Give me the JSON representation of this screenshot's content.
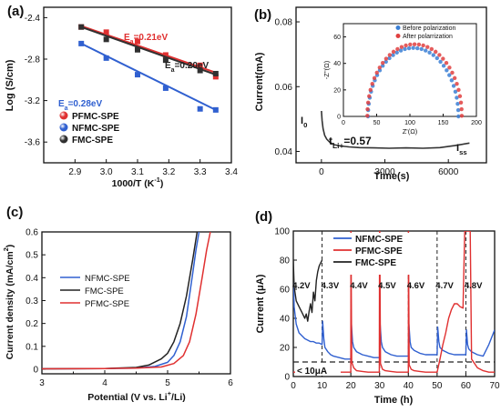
{
  "panels": [
    {
      "letter": "(a)",
      "chart_data": {
        "type": "scatter",
        "xlabel": "1000/T (K",
        "xlabel_sup": "-1",
        "xlabel_tail": ")",
        "ylabel": "Log (S/cm)",
        "xlim": [
          2.8,
          3.4
        ],
        "ylim": [
          -3.8,
          -2.3
        ],
        "xticks": [
          "2.9",
          "3.0",
          "3.1",
          "3.2",
          "3.3",
          "3.4"
        ],
        "xtick_values": [
          2.9,
          3.0,
          3.1,
          3.2,
          3.3,
          3.4
        ],
        "yticks": [
          "-2.4",
          "-2.8",
          "-3.2",
          "-3.6"
        ],
        "ytick_values": [
          -2.4,
          -2.8,
          -3.2,
          -3.6
        ],
        "series": [
          {
            "name": "PFMC-SPE",
            "color": "#e03030",
            "x": [
              2.92,
              3.0,
              3.1,
              3.19,
              3.3,
              3.35
            ],
            "y": [
              -2.49,
              -2.54,
              -2.63,
              -2.76,
              -2.86,
              -2.97
            ],
            "fit": [
              [
                2.92,
                -2.48
              ],
              [
                3.35,
                -2.93
              ]
            ]
          },
          {
            "name": "NFMC-SPE",
            "color": "#3060d0",
            "x": [
              2.92,
              3.0,
              3.1,
              3.19,
              3.3,
              3.35
            ],
            "y": [
              -2.65,
              -2.79,
              -2.95,
              -3.08,
              -3.28,
              -3.29
            ],
            "fit": [
              [
                2.92,
                -2.65
              ],
              [
                3.35,
                -3.29
              ]
            ]
          },
          {
            "name": "FMC-SPE",
            "color": "#303030",
            "x": [
              2.92,
              3.0,
              3.1,
              3.19,
              3.3,
              3.35
            ],
            "y": [
              -2.49,
              -2.61,
              -2.71,
              -2.81,
              -2.91,
              -2.94
            ],
            "fit": [
              [
                2.92,
                -2.49
              ],
              [
                3.35,
                -2.95
              ]
            ]
          }
        ],
        "annotations": [
          {
            "text": "E",
            "sub": "a",
            "tail": "=0.21eV",
            "color": "#e03030"
          },
          {
            "text": "E",
            "sub": "a",
            "tail": "=0.20eV",
            "color": "#222222"
          },
          {
            "text": "E",
            "sub": "a",
            "tail": "=0.28eV",
            "color": "#3060d0"
          }
        ],
        "legend": "bottom-left"
      }
    },
    {
      "letter": "(b)",
      "chart_data": {
        "type": "line",
        "xlabel": "Time(s)",
        "ylabel": "Current(mA)",
        "xlim": [
          -1200,
          7800
        ],
        "ylim": [
          0.0365,
          0.0845
        ],
        "xticks": [
          "0",
          "3000",
          "6000"
        ],
        "xtick_values": [
          0,
          3000,
          6000
        ],
        "yticks": [
          "0.04",
          "0.06",
          "0.08"
        ],
        "ytick_values": [
          0.04,
          0.06,
          0.08
        ],
        "series": [
          {
            "name": "",
            "color": "#333333",
            "x": [
              0,
              30,
              80,
              150,
              250,
              400,
              600,
              900,
              1300,
              1800,
              2500,
              3200,
              4000,
              4800,
              5600,
              6300,
              7000
            ],
            "y": [
              0.0525,
              0.0495,
              0.047,
              0.045,
              0.0438,
              0.0428,
              0.0421,
              0.0417,
              0.0414,
              0.0412,
              0.0411,
              0.041,
              0.0411,
              0.041,
              0.0412,
              0.0418,
              0.0426
            ]
          }
        ],
        "labels": {
          "I0": "I",
          "I0_sub": "0",
          "tLi": "t",
          "tLi_sub": "Li+",
          "tLi_tail": "=0.57",
          "Iss": "I",
          "Iss_sub": "ss"
        },
        "inset": {
          "type": "scatter",
          "xlabel": "Z'(Ω)",
          "ylabel": "-Z''(Ω)",
          "xlim": [
            0,
            200
          ],
          "ylim": [
            0,
            70
          ],
          "xticks": [
            "0",
            "50",
            "100",
            "150",
            "200"
          ],
          "xtick_values": [
            0,
            50,
            100,
            150,
            200
          ],
          "yticks": [
            "0",
            "20",
            "40",
            "60"
          ],
          "ytick_values": [
            0,
            20,
            40,
            60
          ],
          "series": [
            {
              "name": "Before polarization",
              "color": "#3a7fd5",
              "center": 105,
              "radius": 68
            },
            {
              "name": "After polarrization",
              "color": "#e04040",
              "center": 107,
              "radius": 71
            }
          ],
          "legend": "top-right"
        }
      }
    },
    {
      "letter": "(c)",
      "chart_data": {
        "type": "line",
        "xlabel": "Potential (V vs. Li",
        "xlabel_sup": "+",
        "xlabel_tail": "/Li)",
        "ylabel": "Current density (mA/cm",
        "ylabel_sup": "2",
        "ylabel_tail": ")",
        "xlim": [
          3,
          6
        ],
        "ylim": [
          -0.02,
          0.6
        ],
        "xticks": [
          "3",
          "4",
          "5",
          "6"
        ],
        "xtick_values": [
          3,
          4,
          5,
          6
        ],
        "xminor": [
          3.5,
          4.5,
          5.5
        ],
        "yticks": [
          "0",
          "0.1",
          "0.2",
          "0.3",
          "0.4",
          "0.5",
          "0.6"
        ],
        "ytick_values": [
          0,
          0.1,
          0.2,
          0.3,
          0.4,
          0.5,
          0.6
        ],
        "series": [
          {
            "name": "NFMC-SPE",
            "color": "#3060d0",
            "x": [
              3.0,
              4.0,
              4.5,
              4.8,
              5.0,
              5.1,
              5.2,
              5.3,
              5.4,
              5.45,
              5.5
            ],
            "y": [
              0.002,
              0.003,
              0.005,
              0.012,
              0.03,
              0.06,
              0.12,
              0.23,
              0.42,
              0.52,
              0.6
            ]
          },
          {
            "name": "FMC-SPE",
            "color": "#222222",
            "x": [
              3.0,
              4.0,
              4.5,
              4.7,
              4.9,
              5.0,
              5.1,
              5.2,
              5.3,
              5.4,
              5.47
            ],
            "y": [
              0.002,
              0.003,
              0.008,
              0.018,
              0.045,
              0.07,
              0.12,
              0.2,
              0.32,
              0.48,
              0.6
            ]
          },
          {
            "name": "PFMC-SPE",
            "color": "#e03030",
            "x": [
              3.0,
              4.0,
              4.5,
              4.9,
              5.1,
              5.25,
              5.35,
              5.45,
              5.55,
              5.62,
              5.68
            ],
            "y": [
              0.002,
              0.003,
              0.005,
              0.01,
              0.025,
              0.06,
              0.12,
              0.24,
              0.4,
              0.52,
              0.6
            ]
          }
        ],
        "legend": "center-left"
      }
    },
    {
      "letter": "(d)",
      "chart_data": {
        "type": "line",
        "xlabel": "Time (h)",
        "ylabel": "Current (μA)",
        "xlim": [
          0,
          70
        ],
        "ylim": [
          0,
          100
        ],
        "xticks": [
          "0",
          "10",
          "20",
          "30",
          "40",
          "50",
          "60",
          "70"
        ],
        "xtick_values": [
          0,
          10,
          20,
          30,
          40,
          50,
          60,
          70
        ],
        "yticks": [
          "0",
          "20",
          "40",
          "60",
          "80",
          "100"
        ],
        "ytick_values": [
          0,
          20,
          40,
          60,
          80,
          100
        ],
        "voltage_labels": [
          "4.2V",
          "4.3V",
          "4.4V",
          "4.5V",
          "4.6V",
          "4.7V",
          "4.8V"
        ],
        "voltage_label_x": [
          2.8,
          12.8,
          22.8,
          32.6,
          42.6,
          52.6,
          62.6
        ],
        "step_boundaries": [
          10,
          20,
          30,
          40,
          50,
          60
        ],
        "threshold": 10,
        "threshold_label": "< 10μA",
        "series": [
          {
            "name": "NFMC-SPE",
            "color": "#3060d0",
            "x": [
              0,
              0.3,
              1,
              2,
              3,
              4,
              5,
              6,
              7,
              8,
              9,
              10,
              10.2,
              10.6,
              11,
              12,
              13,
              14,
              16,
              18,
              20,
              20.2,
              20.6,
              21,
              22,
              24,
              26,
              28,
              30,
              30.2,
              30.6,
              31,
              32,
              34,
              36,
              38,
              40,
              40.2,
              40.6,
              41,
              42,
              44,
              46,
              48,
              50,
              50.2,
              50.6,
              51,
              52,
              54,
              56,
              58,
              60,
              60.2,
              60.6,
              61,
              62,
              64,
              66,
              68,
              70
            ],
            "y": [
              72,
              48,
              36,
              30,
              28,
              26,
              25,
              24,
              24,
              23,
              23,
              22,
              38,
              26,
              20,
              17,
              15,
              14,
              13,
              12,
              12,
              36,
              24,
              20,
              17,
              15,
              14,
              13,
              13,
              36,
              24,
              20,
              17,
              15,
              14,
              14,
              14,
              36,
              24,
              20,
              18,
              16,
              15,
              15,
              15,
              34,
              24,
              20,
              18,
              16,
              15,
              15,
              15,
              32,
              22,
              19,
              17,
              15,
              14,
              22,
              32
            ]
          },
          {
            "name": "PFMC-SPE",
            "color": "#e03030",
            "x": [
              0,
              20,
              20.05,
              20.3,
              21,
              22,
              24,
              26,
              28,
              29.9,
              30,
              30.05,
              30.3,
              31,
              32,
              34,
              36,
              38,
              39.9,
              40,
              40.05,
              40.3,
              41,
              42,
              44,
              46,
              48,
              50,
              51,
              52,
              53,
              54,
              55,
              56,
              57,
              58,
              59,
              59.6,
              60,
              60.4,
              61,
              61.5,
              62,
              64,
              66,
              68,
              70
            ],
            "y": [
              3,
              3,
              100,
              10,
              6,
              4,
              3.5,
              3,
              3,
              3,
              100,
              100,
              9,
              5,
              4,
              3.5,
              3,
              3,
              3,
              3,
              100,
              8,
              5,
              4,
              3.5,
              3,
              3,
              3,
              12,
              22,
              30,
              40,
              46,
              50,
              50,
              48,
              47,
              100,
              100,
              100,
              100,
              100,
              12,
              6,
              4,
              3,
              3
            ]
          },
          {
            "name": "FMC-SPE",
            "color": "#222222",
            "x": [
              0,
              0.3,
              1,
              2,
              3,
              4,
              4.5,
              5,
              5.5,
              6,
              6.5,
              7,
              7.5,
              8,
              8.5,
              9,
              9.5,
              10
            ],
            "y": [
              80,
              62,
              52,
              48,
              44,
              40,
              43,
              38,
              45,
              50,
              44,
              58,
              52,
              66,
              72,
              76,
              78,
              80
            ]
          }
        ],
        "legend": "top-center"
      }
    }
  ]
}
